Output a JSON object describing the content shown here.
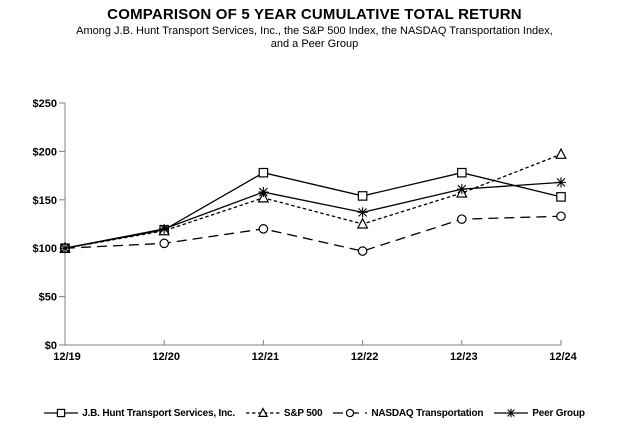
{
  "title": "COMPARISON OF 5 YEAR CUMULATIVE TOTAL RETURN",
  "subtitle": {
    "line1": "Among J.B. Hunt Transport Services, Inc., the S&P 500 Index, the NASDAQ Transportation Index,",
    "line2": "and a Peer Group"
  },
  "chart_data": {
    "type": "line",
    "title": "COMPARISON OF 5 YEAR CUMULATIVE TOTAL RETURN",
    "subtitle": "Among J.B. Hunt Transport Services, Inc., the S&P 500 Index, the NASDAQ Transportation Index, and a Peer Group",
    "x": [
      "12/19",
      "12/20",
      "12/21",
      "12/22",
      "12/23",
      "12/24"
    ],
    "xlabel": "",
    "ylabel": "",
    "ylim": [
      0,
      250
    ],
    "ytick_step": 50,
    "yticks": [
      "$0",
      "$50",
      "$100",
      "$150",
      "$200",
      "$250"
    ],
    "grid": false,
    "legend_position": "bottom",
    "colors": {
      "line": "#000000",
      "axis": "#808080",
      "text": "#000000",
      "background": "#ffffff"
    },
    "series": [
      {
        "name": "J.B. Hunt Transport Services, Inc.",
        "marker": "square",
        "line_style": "solid",
        "values": [
          100,
          119,
          178,
          154,
          178,
          153
        ]
      },
      {
        "name": "S&P 500",
        "marker": "triangle",
        "line_style": "short-dash",
        "values": [
          100,
          118,
          152,
          125,
          157,
          197
        ]
      },
      {
        "name": "NASDAQ Transportation",
        "marker": "circle",
        "line_style": "long-dash",
        "values": [
          100,
          105,
          120,
          97,
          130,
          133
        ]
      },
      {
        "name": "Peer Group",
        "marker": "star",
        "line_style": "solid",
        "values": [
          100,
          120,
          158,
          137,
          161,
          168
        ]
      }
    ]
  }
}
